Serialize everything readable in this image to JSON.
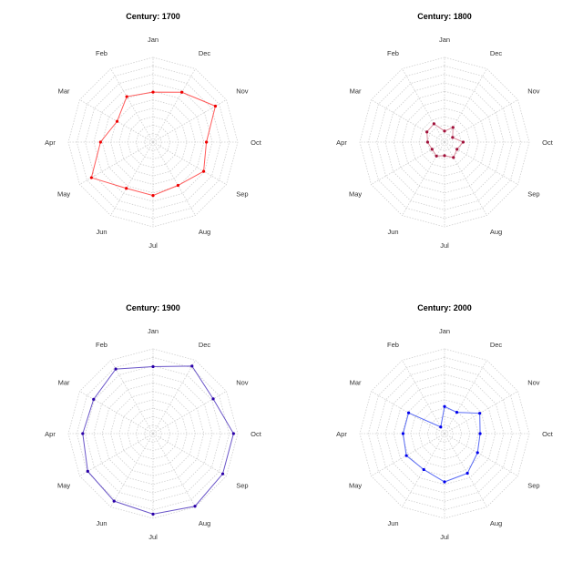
{
  "chart_data": [
    {
      "type": "radar",
      "title": "Century: 1700",
      "categories": [
        "Jan",
        "Feb",
        "Mar",
        "Apr",
        "May",
        "Jun",
        "Jul",
        "Aug",
        "Sep",
        "Oct",
        "Nov",
        "Dec"
      ],
      "values": [
        59,
        62,
        49,
        62,
        84,
        63,
        63,
        59,
        69,
        63,
        85,
        68
      ],
      "range": [
        0,
        100
      ],
      "rings": 10,
      "line_color": "#ff5a5a",
      "point_color": "#ee0000",
      "grid": true
    },
    {
      "type": "radar",
      "title": "Century: 1800",
      "categories": [
        "Jan",
        "Feb",
        "Mar",
        "Apr",
        "May",
        "Jun",
        "Jul",
        "Aug",
        "Sep",
        "Oct",
        "Nov",
        "Dec"
      ],
      "values": [
        13,
        25,
        24,
        20,
        17,
        19,
        16,
        21,
        17,
        22,
        11,
        20
      ],
      "range": [
        0,
        100
      ],
      "rings": 10,
      "line_color": "#d9909f",
      "point_color": "#a0103a",
      "grid": true
    },
    {
      "type": "radar",
      "title": "Century: 1900",
      "categories": [
        "Jan",
        "Feb",
        "Mar",
        "Apr",
        "May",
        "Jun",
        "Jul",
        "Aug",
        "Sep",
        "Oct",
        "Nov",
        "Dec"
      ],
      "values": [
        79,
        88,
        81,
        83,
        89,
        92,
        95,
        99,
        95,
        95,
        82,
        92
      ],
      "range": [
        0,
        100
      ],
      "rings": 10,
      "line_color": "#6a55c8",
      "point_color": "#2a00a8",
      "grid": true
    },
    {
      "type": "radar",
      "title": "Century: 2000",
      "categories": [
        "Jan",
        "Feb",
        "Mar",
        "Apr",
        "May",
        "Jun",
        "Jul",
        "Aug",
        "Sep",
        "Oct",
        "Nov",
        "Dec"
      ],
      "values": [
        32,
        9,
        49,
        49,
        52,
        49,
        57,
        54,
        45,
        42,
        48,
        29
      ],
      "range": [
        0,
        100
      ],
      "rings": 10,
      "line_color": "#5a6cf5",
      "point_color": "#0000ee",
      "grid": true
    }
  ]
}
